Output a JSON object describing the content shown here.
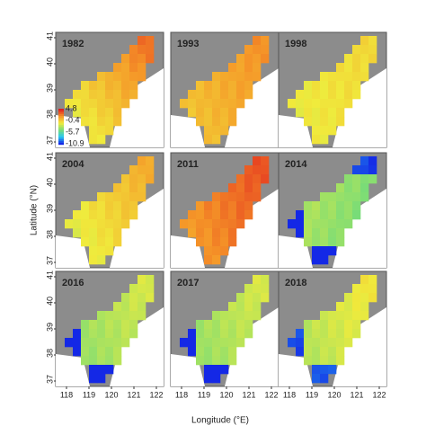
{
  "panels": [
    {
      "label": "1982"
    },
    {
      "label": "1993"
    },
    {
      "label": "1998"
    },
    {
      "label": "2004"
    },
    {
      "label": "2011"
    },
    {
      "label": "2014"
    },
    {
      "label": "2016"
    },
    {
      "label": "2017"
    },
    {
      "label": "2018"
    }
  ],
  "x_axis": {
    "label": "Longitude (°E)",
    "ticks": [
      "118",
      "119",
      "120",
      "121",
      "122"
    ]
  },
  "y_axis": {
    "label": "Latitude (°N)",
    "ticks": [
      "41",
      "40",
      "39",
      "38",
      "37"
    ]
  },
  "colorbar": {
    "labels": [
      "4.8",
      "-0.4",
      "-5.7",
      "-10.9"
    ]
  }
}
